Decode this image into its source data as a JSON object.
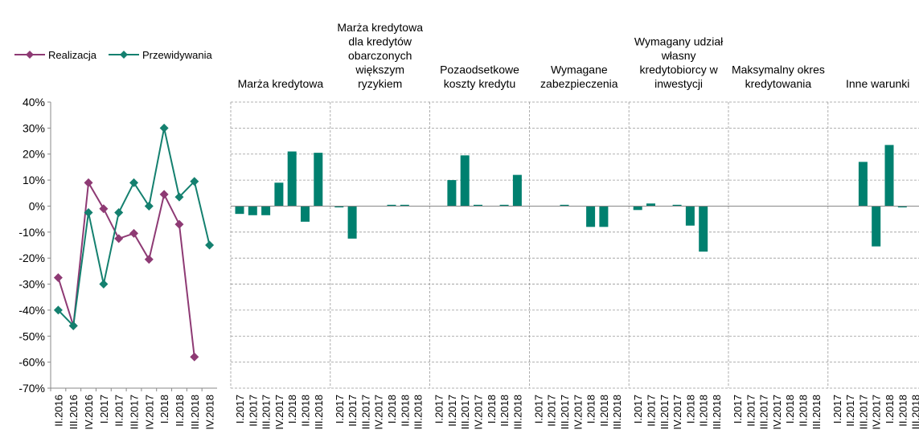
{
  "chart_data": [
    {
      "type": "line",
      "categories": [
        "II.2016",
        "III.2016",
        "IV.2016",
        "I.2017",
        "II.2017",
        "III.2017",
        "IV.2017",
        "I.2018",
        "II.2018",
        "III.2018",
        "IV.2018"
      ],
      "series": [
        {
          "name": "Realizacja",
          "color": "#8e3a74",
          "values": [
            -27.5,
            -46,
            9,
            -1,
            -12.5,
            -10.5,
            -20.5,
            4.5,
            -7,
            -58,
            null
          ]
        },
        {
          "name": "Przewidywania",
          "color": "#14806f",
          "values": [
            -40,
            -46,
            -2.5,
            -30,
            -2.5,
            9,
            0,
            30,
            3.5,
            9.5,
            -15
          ]
        }
      ],
      "ylim": [
        -70,
        40
      ],
      "yticks": [
        {
          "value": 40,
          "label": "40%"
        },
        {
          "value": 30,
          "label": "30%"
        },
        {
          "value": 20,
          "label": "20%"
        },
        {
          "value": 10,
          "label": "10%"
        },
        {
          "value": 0,
          "label": "0%"
        },
        {
          "value": -10,
          "label": "-10%"
        },
        {
          "value": -20,
          "label": "-20%"
        },
        {
          "value": -30,
          "label": "-30%"
        },
        {
          "value": -40,
          "label": "-40%"
        },
        {
          "value": -50,
          "label": "-50%"
        },
        {
          "value": -60,
          "label": "-60%"
        },
        {
          "value": -70,
          "label": "-70%"
        }
      ],
      "legend": "top-left"
    },
    {
      "type": "bar",
      "color": "#00806f",
      "categories": [
        "I.2017",
        "II.2017",
        "III.2017",
        "IV.2017",
        "I.2018",
        "II.2018",
        "III.2018"
      ],
      "panels": [
        {
          "title": [
            "Marża kredytowa"
          ],
          "values": [
            -3,
            -3.5,
            -3.5,
            9,
            21,
            -6,
            20.5
          ]
        },
        {
          "title": [
            "Marża kredytowa",
            "dla kredytów",
            "obarczonych",
            "większym",
            "ryzykiem"
          ],
          "values": [
            -0.5,
            -12.5,
            0,
            0,
            0.5,
            0.5,
            0
          ]
        },
        {
          "title": [
            "Pozaodsetkowe",
            "koszty kredytu"
          ],
          "values": [
            0,
            10,
            19.5,
            0.5,
            0,
            0.5,
            12
          ]
        },
        {
          "title": [
            "Wymagane",
            "zabezpieczenia"
          ],
          "values": [
            0,
            0,
            0.5,
            0,
            -8,
            -8,
            0
          ]
        },
        {
          "title": [
            "Wymagany udział",
            "własny",
            "kredytobiorcy w",
            "inwestycji"
          ],
          "values": [
            -1.5,
            1,
            0,
            0.5,
            -7.5,
            -17.5,
            0
          ]
        },
        {
          "title": [
            "Maksymalny okres",
            "kredytowania"
          ],
          "values": [
            0,
            0,
            0,
            0,
            0,
            0,
            0
          ]
        },
        {
          "title": [
            "Inne warunki"
          ],
          "values": [
            0,
            0,
            17,
            -15.5,
            23.5,
            -0.5,
            0
          ]
        }
      ],
      "ylim": [
        -70,
        40
      ],
      "yticks": [
        40,
        30,
        20,
        10,
        0,
        -10,
        -20,
        -30,
        -40,
        -50,
        -60,
        -70
      ],
      "grid": true
    }
  ]
}
